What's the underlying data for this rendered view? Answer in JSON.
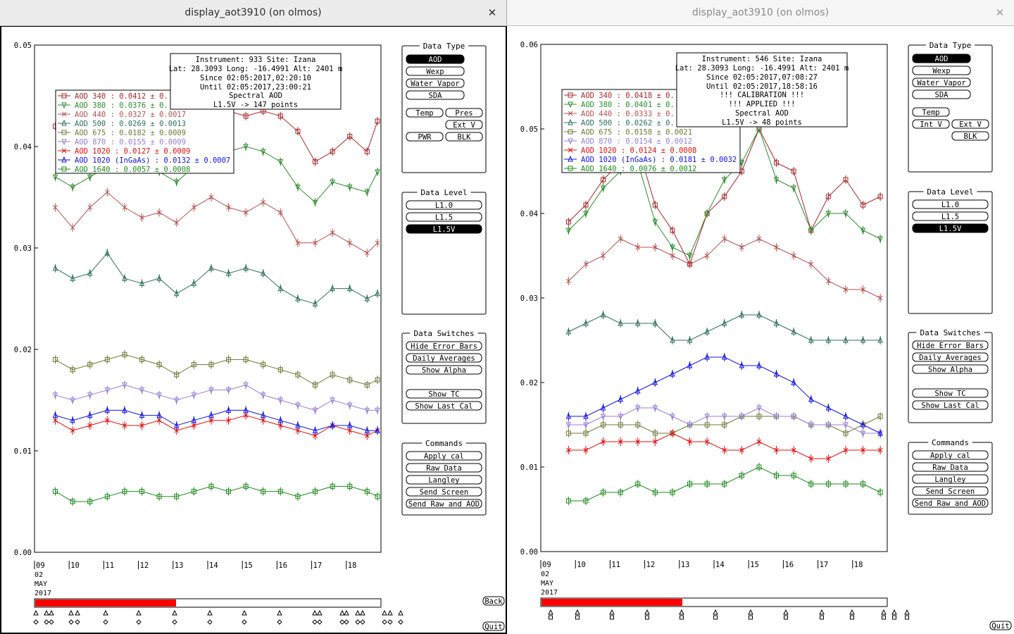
{
  "colors": {
    "aod340": "#a8282b",
    "aod380": "#2e8b2e",
    "aod440": "#b55252",
    "aod500": "#2f6f5f",
    "aod675": "#6e7a3a",
    "aod870": "#9a7fd6",
    "aod1020": "#e01010",
    "aod1020i": "#1414e0",
    "aod1640": "#1f8a1f",
    "timebar": "#ff0000"
  },
  "panel": {
    "data_type_title": "Data Type",
    "btn_aod": "AOD",
    "btn_wexp": "Wexp",
    "btn_water": "Water Vapor",
    "btn_sda": "SDA",
    "btn_temp": "Temp",
    "btn_pres": "Pres",
    "btn_extv": "Ext V",
    "btn_pwr": "PWR",
    "btn_blk": "BLK",
    "btn_intv": "Int V",
    "data_level_title": "Data Level",
    "lvl_10": "L1.0",
    "lvl_15": "L1.5",
    "lvl_15v": "L1.5V",
    "switches_title": "Data Switches",
    "sw_hide": "Hide Error Bars",
    "sw_daily": "Daily Averages",
    "sw_alpha": "Show Alpha",
    "sw_tc": "Show TC",
    "sw_lastcal": "Show Last Cal",
    "commands_title": "Commands",
    "cmd_apply": "Apply cal",
    "cmd_raw": "Raw Data",
    "cmd_langley": "Langley",
    "cmd_send": "Send Screen",
    "cmd_sendraw": "Send Raw and AOD",
    "back": "Back",
    "quit": "Quit"
  },
  "left": {
    "title": "display_aot3910 (on olmos)",
    "info": [
      "Instrument: 933 Site: Izana",
      "Lat: 28.3093 Long: -16.4991 Alt: 2401 m",
      "Since 02:05:2017,02:20:10",
      "Until 02:05:2017,23:00:21",
      "Spectral AOD",
      "L1.5V -> 147 points"
    ],
    "legend": [
      "AOD 340   : 0.0412 ± 0.",
      "AOD 380   : 0.0376 ± 0.",
      "AOD 440   : 0.0327 ± 0.0017",
      "AOD 500   : 0.0269 ± 0.0013",
      "AOD 675   : 0.0182 ± 0.0009",
      "AOD 870   : 0.0155 ± 0.0009",
      "AOD 1020  : 0.0127 ± 0.0009",
      "AOD 1020 (InGaAs)  : 0.0132 ± 0.0007",
      "AOD 1640  : 0.0057 ± 0.0008"
    ],
    "yticks": [
      "0.05",
      "0.04",
      "0.03",
      "0.02",
      "0.01",
      "0.00"
    ],
    "xticks": [
      "09",
      "10",
      "11",
      "12",
      "13",
      "14",
      "15",
      "16",
      "17",
      "18"
    ],
    "date_lines": [
      "02",
      "MAY",
      "2017"
    ]
  },
  "right": {
    "title": "display_aot3910 (on olmos)",
    "info": [
      "Instrument: 546 Site: Izana",
      "Lat: 28.3093 Long: -16.4991 Alt: 2401 m",
      "Since 02:05:2017,07:08:27",
      "Until 02:05:2017,18:58:16",
      "!!! CALIBRATION !!!",
      "!!!   APPLIED   !!!",
      "Spectral AOD",
      "L1.5V -> 48 points"
    ],
    "legend": [
      "AOD 340   : 0.0418 ± 0.",
      "AOD 380   : 0.0401 ± 0.",
      "AOD 440   : 0.0333 ± 0.",
      "AOD 500   : 0.0262 ± 0.",
      "AOD 675   : 0.0158 ± 0.0021",
      "AOD 870   : 0.0154 ± 0.0012",
      "AOD 1020  : 0.0124 ± 0.0008",
      "AOD 1020 (InGaAs)  : 0.0181 ± 0.0032",
      "AOD 1640  : 0.0076 ± 0.0012"
    ],
    "yticks": [
      "0.06",
      "0.05",
      "0.04",
      "0.03",
      "0.02",
      "0.01",
      "0.00"
    ],
    "xticks": [
      "09",
      "10",
      "11",
      "12",
      "13",
      "14",
      "15",
      "16",
      "17",
      "18"
    ],
    "date_lines": [
      "02",
      "MAY",
      "2017"
    ]
  },
  "chart_data": [
    {
      "type": "line",
      "title": "",
      "xlabel": "",
      "ylabel": "",
      "x_range": [
        9,
        19
      ],
      "ylim": [
        0,
        0.05
      ],
      "grid": false,
      "legend_placement": "top-left",
      "series": [
        {
          "name": "AOD 340",
          "x": [
            9.6,
            10.1,
            10.6,
            11.1,
            11.6,
            12.1,
            12.6,
            13.1,
            13.6,
            14.1,
            14.6,
            15.1,
            15.6,
            16.1,
            16.6,
            17.1,
            17.6,
            18.1,
            18.6,
            18.9
          ],
          "values": [
            0.042,
            0.0425,
            0.043,
            0.044,
            0.0445,
            0.043,
            0.0425,
            0.041,
            0.0425,
            0.043,
            0.0435,
            0.043,
            0.0435,
            0.043,
            0.0415,
            0.0385,
            0.0395,
            0.041,
            0.0395,
            0.0425
          ]
        },
        {
          "name": "AOD 380",
          "x": [
            9.6,
            10.1,
            10.6,
            11.1,
            11.6,
            12.1,
            12.6,
            13.1,
            13.6,
            14.1,
            14.6,
            15.1,
            15.6,
            16.1,
            16.6,
            17.1,
            17.6,
            18.1,
            18.6,
            18.9
          ],
          "values": [
            0.037,
            0.036,
            0.037,
            0.038,
            0.039,
            0.038,
            0.0375,
            0.0365,
            0.038,
            0.0385,
            0.0395,
            0.04,
            0.0395,
            0.0385,
            0.036,
            0.0345,
            0.0365,
            0.036,
            0.0355,
            0.0375
          ]
        },
        {
          "name": "AOD 440",
          "x": [
            9.6,
            10.1,
            10.6,
            11.1,
            11.6,
            12.1,
            12.6,
            13.1,
            13.6,
            14.1,
            14.6,
            15.1,
            15.6,
            16.1,
            16.6,
            17.1,
            17.6,
            18.1,
            18.6,
            18.9
          ],
          "values": [
            0.034,
            0.032,
            0.034,
            0.0355,
            0.034,
            0.033,
            0.0335,
            0.0325,
            0.034,
            0.035,
            0.034,
            0.0335,
            0.0345,
            0.0335,
            0.0305,
            0.0305,
            0.0315,
            0.0305,
            0.0295,
            0.0305
          ]
        },
        {
          "name": "AOD 500",
          "x": [
            9.6,
            10.1,
            10.6,
            11.1,
            11.6,
            12.1,
            12.6,
            13.1,
            13.6,
            14.1,
            14.6,
            15.1,
            15.6,
            16.1,
            16.6,
            17.1,
            17.6,
            18.1,
            18.6,
            18.9
          ],
          "values": [
            0.028,
            0.027,
            0.0275,
            0.0295,
            0.027,
            0.0265,
            0.027,
            0.0255,
            0.0265,
            0.028,
            0.0275,
            0.028,
            0.0275,
            0.026,
            0.025,
            0.0245,
            0.026,
            0.026,
            0.025,
            0.0255
          ]
        },
        {
          "name": "AOD 675",
          "x": [
            9.6,
            10.1,
            10.6,
            11.1,
            11.6,
            12.1,
            12.6,
            13.1,
            13.6,
            14.1,
            14.6,
            15.1,
            15.6,
            16.1,
            16.6,
            17.1,
            17.6,
            18.1,
            18.6,
            18.9
          ],
          "values": [
            0.019,
            0.018,
            0.0185,
            0.019,
            0.0195,
            0.019,
            0.0185,
            0.0175,
            0.0185,
            0.0185,
            0.019,
            0.019,
            0.0185,
            0.018,
            0.0175,
            0.0165,
            0.0175,
            0.017,
            0.0165,
            0.017
          ]
        },
        {
          "name": "AOD 870",
          "x": [
            9.6,
            10.1,
            10.6,
            11.1,
            11.6,
            12.1,
            12.6,
            13.1,
            13.6,
            14.1,
            14.6,
            15.1,
            15.6,
            16.1,
            16.6,
            17.1,
            17.6,
            18.1,
            18.6,
            18.9
          ],
          "values": [
            0.0155,
            0.015,
            0.0155,
            0.016,
            0.0165,
            0.016,
            0.0155,
            0.015,
            0.0155,
            0.016,
            0.016,
            0.0165,
            0.0155,
            0.015,
            0.0145,
            0.014,
            0.015,
            0.0145,
            0.014,
            0.014
          ]
        },
        {
          "name": "AOD 1020",
          "x": [
            9.6,
            10.1,
            10.6,
            11.1,
            11.6,
            12.1,
            12.6,
            13.1,
            13.6,
            14.1,
            14.6,
            15.1,
            15.6,
            16.1,
            16.6,
            17.1,
            17.6,
            18.1,
            18.6,
            18.9
          ],
          "values": [
            0.013,
            0.012,
            0.0125,
            0.013,
            0.0125,
            0.0125,
            0.013,
            0.012,
            0.0125,
            0.013,
            0.013,
            0.0135,
            0.013,
            0.0125,
            0.012,
            0.0115,
            0.0125,
            0.012,
            0.0115,
            0.012
          ]
        },
        {
          "name": "AOD 1020 (InGaAs)",
          "x": [
            9.6,
            10.1,
            10.6,
            11.1,
            11.6,
            12.1,
            12.6,
            13.1,
            13.6,
            14.1,
            14.6,
            15.1,
            15.6,
            16.1,
            16.6,
            17.1,
            17.6,
            18.1,
            18.6,
            18.9
          ],
          "values": [
            0.0135,
            0.013,
            0.0135,
            0.014,
            0.014,
            0.0135,
            0.0135,
            0.0125,
            0.013,
            0.0135,
            0.014,
            0.014,
            0.0135,
            0.013,
            0.0125,
            0.012,
            0.0125,
            0.0125,
            0.012,
            0.012
          ]
        },
        {
          "name": "AOD 1640",
          "x": [
            9.6,
            10.1,
            10.6,
            11.1,
            11.6,
            12.1,
            12.6,
            13.1,
            13.6,
            14.1,
            14.6,
            15.1,
            15.6,
            16.1,
            16.6,
            17.1,
            17.6,
            18.1,
            18.6,
            18.9
          ],
          "values": [
            0.006,
            0.005,
            0.005,
            0.0055,
            0.006,
            0.006,
            0.0055,
            0.0055,
            0.006,
            0.0065,
            0.006,
            0.0065,
            0.006,
            0.006,
            0.0055,
            0.006,
            0.0065,
            0.0065,
            0.006,
            0.0055
          ]
        }
      ]
    },
    {
      "type": "line",
      "title": "",
      "xlabel": "",
      "ylabel": "",
      "x_range": [
        9,
        19
      ],
      "ylim": [
        0,
        0.06
      ],
      "grid": false,
      "legend_placement": "top-left",
      "series": [
        {
          "name": "AOD 340",
          "x": [
            9.8,
            10.3,
            10.8,
            11.3,
            11.8,
            12.3,
            12.8,
            13.3,
            13.8,
            14.3,
            14.8,
            15.3,
            15.8,
            16.3,
            16.8,
            17.3,
            17.8,
            18.3,
            18.8
          ],
          "values": [
            0.039,
            0.041,
            0.044,
            0.046,
            0.048,
            0.041,
            0.038,
            0.034,
            0.04,
            0.042,
            0.045,
            0.05,
            0.046,
            0.045,
            0.038,
            0.042,
            0.044,
            0.041,
            0.042
          ]
        },
        {
          "name": "AOD 380",
          "x": [
            9.8,
            10.3,
            10.8,
            11.3,
            11.8,
            12.3,
            12.8,
            13.3,
            13.8,
            14.3,
            14.8,
            15.3,
            15.8,
            16.3,
            16.8,
            17.3,
            17.8,
            18.3,
            18.8
          ],
          "values": [
            0.038,
            0.04,
            0.043,
            0.045,
            0.046,
            0.039,
            0.036,
            0.035,
            0.04,
            0.044,
            0.046,
            0.05,
            0.044,
            0.043,
            0.038,
            0.04,
            0.04,
            0.038,
            0.037
          ]
        },
        {
          "name": "AOD 440",
          "x": [
            9.8,
            10.3,
            10.8,
            11.3,
            11.8,
            12.3,
            12.8,
            13.3,
            13.8,
            14.3,
            14.8,
            15.3,
            15.8,
            16.3,
            16.8,
            17.3,
            17.8,
            18.3,
            18.8
          ],
          "values": [
            0.032,
            0.034,
            0.035,
            0.037,
            0.036,
            0.036,
            0.035,
            0.034,
            0.035,
            0.037,
            0.036,
            0.037,
            0.036,
            0.035,
            0.034,
            0.032,
            0.031,
            0.031,
            0.03
          ]
        },
        {
          "name": "AOD 500",
          "x": [
            9.8,
            10.3,
            10.8,
            11.3,
            11.8,
            12.3,
            12.8,
            13.3,
            13.8,
            14.3,
            14.8,
            15.3,
            15.8,
            16.3,
            16.8,
            17.3,
            17.8,
            18.3,
            18.8
          ],
          "values": [
            0.026,
            0.027,
            0.028,
            0.027,
            0.027,
            0.027,
            0.025,
            0.025,
            0.026,
            0.027,
            0.028,
            0.028,
            0.027,
            0.026,
            0.025,
            0.025,
            0.025,
            0.025,
            0.025
          ]
        },
        {
          "name": "AOD 675",
          "x": [
            9.8,
            10.3,
            10.8,
            11.3,
            11.8,
            12.3,
            12.8,
            13.3,
            13.8,
            14.3,
            14.8,
            15.3,
            15.8,
            16.3,
            16.8,
            17.3,
            17.8,
            18.3,
            18.8
          ],
          "values": [
            0.014,
            0.014,
            0.015,
            0.015,
            0.015,
            0.014,
            0.014,
            0.015,
            0.015,
            0.015,
            0.016,
            0.016,
            0.016,
            0.016,
            0.015,
            0.015,
            0.014,
            0.015,
            0.016
          ]
        },
        {
          "name": "AOD 870",
          "x": [
            9.8,
            10.3,
            10.8,
            11.3,
            11.8,
            12.3,
            12.8,
            13.3,
            13.8,
            14.3,
            14.8,
            15.3,
            15.8,
            16.3,
            16.8,
            17.3,
            17.8,
            18.3,
            18.8
          ],
          "values": [
            0.015,
            0.015,
            0.016,
            0.016,
            0.017,
            0.017,
            0.016,
            0.015,
            0.016,
            0.016,
            0.016,
            0.017,
            0.016,
            0.016,
            0.015,
            0.015,
            0.015,
            0.014,
            0.014
          ]
        },
        {
          "name": "AOD 1020",
          "x": [
            9.8,
            10.3,
            10.8,
            11.3,
            11.8,
            12.3,
            12.8,
            13.3,
            13.8,
            14.3,
            14.8,
            15.3,
            15.8,
            16.3,
            16.8,
            17.3,
            17.8,
            18.3,
            18.8
          ],
          "values": [
            0.012,
            0.012,
            0.013,
            0.013,
            0.013,
            0.013,
            0.014,
            0.013,
            0.013,
            0.012,
            0.012,
            0.013,
            0.012,
            0.012,
            0.011,
            0.011,
            0.012,
            0.012,
            0.012
          ]
        },
        {
          "name": "AOD 1020 (InGaAs)",
          "x": [
            9.8,
            10.3,
            10.8,
            11.3,
            11.8,
            12.3,
            12.8,
            13.3,
            13.8,
            14.3,
            14.8,
            15.3,
            15.8,
            16.3,
            16.8,
            17.3,
            17.8,
            18.3,
            18.8
          ],
          "values": [
            0.016,
            0.016,
            0.017,
            0.018,
            0.019,
            0.02,
            0.021,
            0.022,
            0.023,
            0.023,
            0.022,
            0.022,
            0.021,
            0.02,
            0.018,
            0.017,
            0.016,
            0.015,
            0.014
          ]
        },
        {
          "name": "AOD 1640",
          "x": [
            9.8,
            10.3,
            10.8,
            11.3,
            11.8,
            12.3,
            12.8,
            13.3,
            13.8,
            14.3,
            14.8,
            15.3,
            15.8,
            16.3,
            16.8,
            17.3,
            17.8,
            18.3,
            18.8
          ],
          "values": [
            0.006,
            0.006,
            0.007,
            0.007,
            0.008,
            0.007,
            0.007,
            0.008,
            0.008,
            0.008,
            0.009,
            0.01,
            0.009,
            0.009,
            0.008,
            0.008,
            0.008,
            0.008,
            0.007
          ]
        }
      ]
    }
  ]
}
